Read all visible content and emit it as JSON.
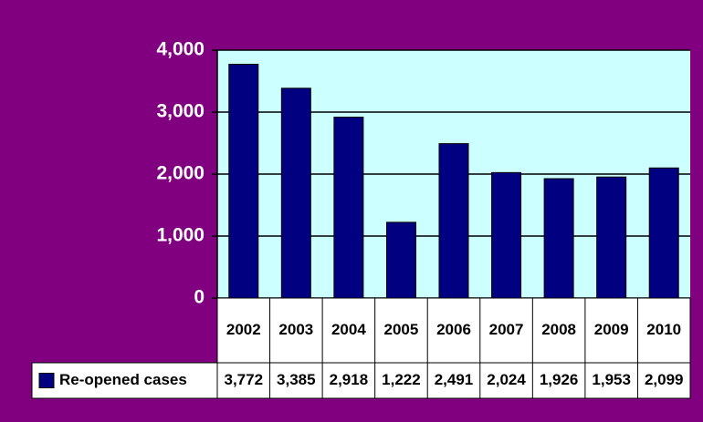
{
  "chart_data": {
    "type": "bar",
    "categories": [
      "2002",
      "2003",
      "2004",
      "2005",
      "2006",
      "2007",
      "2008",
      "2009",
      "2010"
    ],
    "series": [
      {
        "name": "Re-opened cases",
        "color": "#000080",
        "values": [
          3772,
          3385,
          2918,
          1222,
          2491,
          2024,
          1926,
          1953,
          2099
        ],
        "value_labels": [
          "3,772",
          "3,385",
          "2,918",
          "1,222",
          "2,491",
          "2,024",
          "1,926",
          "1,953",
          "2,099"
        ]
      }
    ],
    "ylim": [
      0,
      4000
    ],
    "yticks": [
      0,
      {
        "value": 1000,
        "label": "1,000"
      },
      {
        "value": 2000,
        "label": "2,000"
      },
      {
        "value": 3000,
        "label": "3,000"
      },
      {
        "value": 4000,
        "label": "4,000"
      }
    ],
    "grid": true
  }
}
